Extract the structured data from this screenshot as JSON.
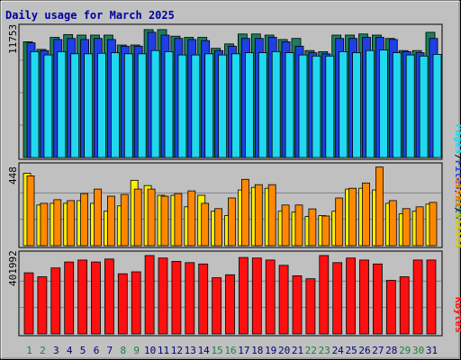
{
  "chart_data": [
    {
      "type": "bar",
      "title": "Daily usage for March 2025",
      "categories": [
        "1",
        "2",
        "3",
        "4",
        "5",
        "6",
        "7",
        "8",
        "9",
        "10",
        "11",
        "12",
        "13",
        "14",
        "15",
        "16",
        "17",
        "18",
        "19",
        "20",
        "21",
        "22",
        "23",
        "24",
        "25",
        "26",
        "27",
        "28",
        "29",
        "30",
        "31"
      ],
      "weekend_days": [
        "1",
        "2",
        "8",
        "9",
        "15",
        "16",
        "22",
        "23",
        "29",
        "30"
      ],
      "y_max_label": "11753",
      "ylim": [
        0,
        11753
      ],
      "grid": true,
      "ylabel_parts": [
        "Pages",
        "/",
        "Files",
        "/",
        "Hits"
      ],
      "series": [
        {
          "name": "Hits",
          "color": "#1a7f5c",
          "values": [
            10500,
            9800,
            10900,
            11150,
            11100,
            11100,
            11100,
            10200,
            10200,
            11600,
            11600,
            11000,
            10900,
            10900,
            9900,
            10300,
            11200,
            11200,
            11100,
            10700,
            10800,
            9700,
            9600,
            11100,
            11100,
            11200,
            11100,
            10800,
            9700,
            9700,
            11350
          ]
        },
        {
          "name": "Files",
          "color": "#1e3fe6",
          "values": [
            10400,
            9700,
            10700,
            10800,
            10700,
            10800,
            10700,
            10100,
            10100,
            11350,
            11100,
            10800,
            10700,
            10600,
            9700,
            10100,
            10800,
            10800,
            10900,
            10500,
            10100,
            9500,
            9400,
            10800,
            10800,
            10900,
            10900,
            10700,
            9600,
            9500,
            10800
          ]
        },
        {
          "name": "Pages",
          "color": "#20d8f0",
          "values": [
            9600,
            9300,
            9600,
            9400,
            9400,
            9450,
            9500,
            9400,
            9400,
            9700,
            9600,
            9300,
            9300,
            9400,
            9300,
            9400,
            9500,
            9500,
            9600,
            9500,
            9300,
            9200,
            9200,
            9600,
            9500,
            9700,
            9750,
            9500,
            9300,
            9200,
            9350
          ]
        }
      ]
    },
    {
      "type": "bar",
      "categories": [
        "1",
        "2",
        "3",
        "4",
        "5",
        "6",
        "7",
        "8",
        "9",
        "10",
        "11",
        "12",
        "13",
        "14",
        "15",
        "16",
        "17",
        "18",
        "19",
        "20",
        "21",
        "22",
        "23",
        "24",
        "25",
        "26",
        "27",
        "28",
        "29",
        "30",
        "31"
      ],
      "y_max_label": "448",
      "ylim": [
        0,
        448
      ],
      "grid": true,
      "ylabel_parts": [
        "Sites",
        "/",
        "Visits"
      ],
      "series": [
        {
          "name": "Visits",
          "color": "#ffee00",
          "values": [
            410,
            230,
            240,
            240,
            255,
            240,
            195,
            225,
            370,
            340,
            285,
            285,
            220,
            285,
            195,
            170,
            315,
            330,
            325,
            195,
            190,
            165,
            170,
            195,
            320,
            325,
            315,
            240,
            180,
            195,
            235
          ]
        },
        {
          "name": "Sites",
          "color": "#ff8800",
          "values": [
            395,
            240,
            260,
            255,
            295,
            320,
            280,
            290,
            320,
            320,
            280,
            295,
            310,
            240,
            210,
            270,
            375,
            345,
            345,
            230,
            230,
            208,
            168,
            270,
            325,
            355,
            445,
            255,
            210,
            220,
            245
          ]
        }
      ]
    },
    {
      "type": "bar",
      "categories": [
        "1",
        "2",
        "3",
        "4",
        "5",
        "6",
        "7",
        "8",
        "9",
        "10",
        "11",
        "12",
        "13",
        "14",
        "15",
        "16",
        "17",
        "18",
        "19",
        "20",
        "21",
        "22",
        "23",
        "24",
        "25",
        "26",
        "27",
        "28",
        "29",
        "30",
        "31"
      ],
      "y_max_label": "401992",
      "ylim": [
        0,
        401992
      ],
      "grid": true,
      "ylabel_parts": [
        "KBytes"
      ],
      "series": [
        {
          "name": "KBytes",
          "color": "#ff1010",
          "values": [
            310000,
            290000,
            335000,
            365000,
            375000,
            365000,
            380000,
            305000,
            315000,
            398000,
            385000,
            368000,
            362000,
            355000,
            285000,
            300000,
            388000,
            385000,
            375000,
            348000,
            295000,
            280000,
            398000,
            362000,
            385000,
            375000,
            355000,
            272000,
            290000,
            375000,
            375000
          ]
        }
      ]
    }
  ],
  "colors": {
    "background": "#c0c0c0",
    "title": "#0000a0",
    "weekday_label": "#000080",
    "weekend_label": "#1a8040",
    "grid": "#808080"
  }
}
